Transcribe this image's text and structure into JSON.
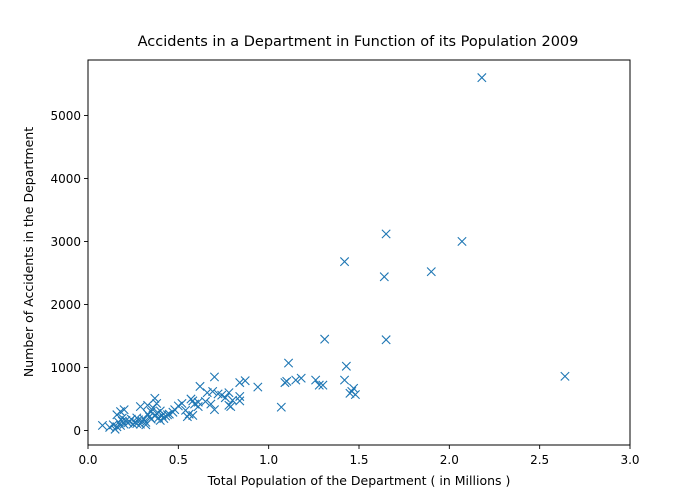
{
  "chart_data": {
    "type": "scatter",
    "title": "Accidents in a Department in Function of its Population 2009",
    "xlabel": "Total Population of the Department ( in Millions )",
    "ylabel": "Number of Accidents in the Department",
    "xlim": [
      0.0,
      3.0
    ],
    "ylim": [
      -230,
      5880
    ],
    "grid": false,
    "x_ticks": [
      "0.0",
      "0.5",
      "1.0",
      "1.5",
      "2.0",
      "2.5",
      "3.0"
    ],
    "y_ticks": [
      "0",
      "1000",
      "2000",
      "3000",
      "4000",
      "5000"
    ],
    "marker": "x",
    "color": "#1f77b4",
    "series": [
      {
        "points": [
          [
            0.08,
            80
          ],
          [
            0.12,
            50
          ],
          [
            0.14,
            90
          ],
          [
            0.15,
            20
          ],
          [
            0.16,
            60
          ],
          [
            0.16,
            250
          ],
          [
            0.17,
            130
          ],
          [
            0.18,
            300
          ],
          [
            0.18,
            80
          ],
          [
            0.19,
            150
          ],
          [
            0.19,
            200
          ],
          [
            0.2,
            330
          ],
          [
            0.2,
            100
          ],
          [
            0.21,
            160
          ],
          [
            0.22,
            120
          ],
          [
            0.23,
            140
          ],
          [
            0.24,
            180
          ],
          [
            0.25,
            100
          ],
          [
            0.26,
            130
          ],
          [
            0.27,
            200
          ],
          [
            0.27,
            110
          ],
          [
            0.28,
            170
          ],
          [
            0.29,
            100
          ],
          [
            0.29,
            380
          ],
          [
            0.3,
            150
          ],
          [
            0.31,
            180
          ],
          [
            0.32,
            130
          ],
          [
            0.32,
            90
          ],
          [
            0.33,
            400
          ],
          [
            0.33,
            260
          ],
          [
            0.34,
            220
          ],
          [
            0.35,
            300
          ],
          [
            0.35,
            180
          ],
          [
            0.36,
            360
          ],
          [
            0.37,
            510
          ],
          [
            0.37,
            230
          ],
          [
            0.38,
            430
          ],
          [
            0.38,
            270
          ],
          [
            0.39,
            200
          ],
          [
            0.4,
            310
          ],
          [
            0.4,
            160
          ],
          [
            0.41,
            240
          ],
          [
            0.42,
            190
          ],
          [
            0.43,
            230
          ],
          [
            0.44,
            250
          ],
          [
            0.45,
            260
          ],
          [
            0.47,
            290
          ],
          [
            0.48,
            330
          ],
          [
            0.5,
            390
          ],
          [
            0.52,
            430
          ],
          [
            0.54,
            320
          ],
          [
            0.55,
            220
          ],
          [
            0.56,
            260
          ],
          [
            0.57,
            500
          ],
          [
            0.58,
            470
          ],
          [
            0.58,
            240
          ],
          [
            0.59,
            420
          ],
          [
            0.61,
            450
          ],
          [
            0.61,
            380
          ],
          [
            0.62,
            700
          ],
          [
            0.65,
            460
          ],
          [
            0.66,
            600
          ],
          [
            0.68,
            420
          ],
          [
            0.69,
            620
          ],
          [
            0.7,
            850
          ],
          [
            0.7,
            330
          ],
          [
            0.72,
            580
          ],
          [
            0.74,
            560
          ],
          [
            0.76,
            520
          ],
          [
            0.78,
            600
          ],
          [
            0.78,
            400
          ],
          [
            0.79,
            380
          ],
          [
            0.8,
            480
          ],
          [
            0.84,
            760
          ],
          [
            0.84,
            540
          ],
          [
            0.84,
            470
          ],
          [
            0.87,
            790
          ],
          [
            0.94,
            690
          ],
          [
            1.07,
            370
          ],
          [
            1.09,
            760
          ],
          [
            1.1,
            780
          ],
          [
            1.11,
            1070
          ],
          [
            1.15,
            800
          ],
          [
            1.18,
            830
          ],
          [
            1.26,
            800
          ],
          [
            1.28,
            720
          ],
          [
            1.3,
            720
          ],
          [
            1.31,
            1450
          ],
          [
            1.42,
            2680
          ],
          [
            1.42,
            800
          ],
          [
            1.43,
            1020
          ],
          [
            1.45,
            590
          ],
          [
            1.46,
            620
          ],
          [
            1.47,
            670
          ],
          [
            1.48,
            570
          ],
          [
            1.64,
            2440
          ],
          [
            1.65,
            3120
          ],
          [
            1.65,
            1440
          ],
          [
            1.9,
            2520
          ],
          [
            2.07,
            3000
          ],
          [
            2.18,
            5600
          ],
          [
            2.64,
            860
          ]
        ]
      }
    ]
  }
}
